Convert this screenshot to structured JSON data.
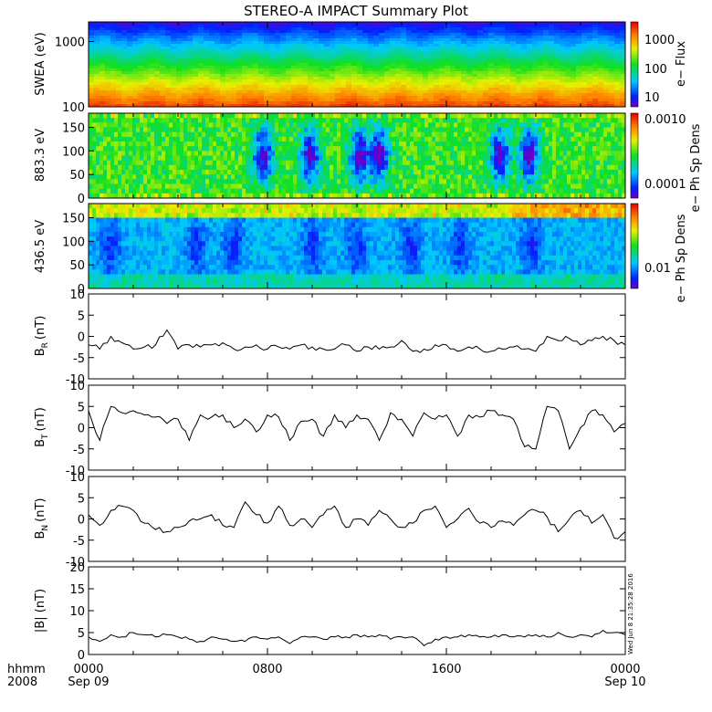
{
  "title": "STEREO-A IMPACT Summary Plot",
  "timestamp": "Wed Jun 8 21:35:28 2016",
  "time_axis": {
    "row1_label": "hhmm",
    "row2_label": "2008",
    "ticks": [
      {
        "top": "0000",
        "bottom": "Sep 09"
      },
      {
        "top": "0800",
        "bottom": ""
      },
      {
        "top": "1600",
        "bottom": ""
      },
      {
        "top": "0000",
        "bottom": "Sep 10"
      }
    ]
  },
  "colorbars": {
    "swea": {
      "title": "e− Flux",
      "ticks": [
        "1000",
        "100",
        "10"
      ]
    },
    "pad883": {
      "title": "e− Ph Sp Dens",
      "ticks": [
        "0.0010",
        "0.0001"
      ]
    },
    "pad436": {
      "title": "e− Ph Sp Dens",
      "ticks": [
        "0.01"
      ]
    }
  },
  "chart_data": [
    {
      "type": "heatmap",
      "name": "swea",
      "ylabel": "SWEA (eV)",
      "y_scale": "log",
      "ylim": [
        100,
        2000
      ],
      "y_ticks": [
        "1000",
        "100"
      ],
      "x_hours": [
        0,
        24
      ],
      "color_scale": "log",
      "color_range": [
        10,
        3000
      ],
      "description_levels": {
        "100": 1000,
        "200": 300,
        "400": 100,
        "1000": 30,
        "2000": 10
      }
    },
    {
      "type": "heatmap",
      "name": "pad883",
      "ylabel": "883.3 eV",
      "ylim": [
        0,
        180
      ],
      "y_ticks": [
        "150",
        "100",
        "50",
        "0"
      ],
      "x_hours": [
        0,
        24
      ],
      "color_scale": "log",
      "color_range": [
        5e-05,
        0.0012
      ],
      "depletions_hours": [
        7.8,
        9.9,
        12.1,
        13.0,
        18.4,
        19.7
      ]
    },
    {
      "type": "heatmap",
      "name": "pad436",
      "ylabel": "436.5 eV",
      "ylim": [
        0,
        180
      ],
      "y_ticks": [
        "150",
        "100",
        "50",
        "0"
      ],
      "x_hours": [
        0,
        24
      ],
      "color_scale": "log",
      "color_range": [
        0.002,
        0.06
      ],
      "depletions_hours": [
        1.0,
        4.8,
        6.5,
        10.0,
        12.0,
        14.4,
        16.6,
        19.8
      ]
    },
    {
      "type": "line",
      "name": "BR",
      "ylabel": "B",
      "ylabel_sub": "R",
      "ylabel_unit": "(nT)",
      "ylim": [
        -10,
        10
      ],
      "y_ticks": [
        "10",
        "5",
        "0",
        "-5",
        "-10"
      ],
      "x_hours": [
        0,
        0.5,
        1,
        1.5,
        2,
        2.5,
        3,
        3.5,
        4,
        4.5,
        5,
        5.5,
        6,
        6.5,
        7,
        7.5,
        8,
        8.5,
        9,
        9.5,
        10,
        10.5,
        11,
        11.5,
        12,
        12.5,
        13,
        13.5,
        14,
        14.5,
        15,
        15.5,
        16,
        16.5,
        17,
        17.5,
        18,
        18.5,
        19,
        19.5,
        20,
        20.5,
        21,
        21.5,
        22,
        22.5,
        23,
        23.5,
        24
      ],
      "y": [
        -2,
        -3,
        0,
        -1.5,
        -3,
        -2.5,
        -2,
        1.5,
        -3,
        -2,
        -2.5,
        -2,
        -1.5,
        -3,
        -2.5,
        -2,
        -3,
        -2.5,
        -3,
        -2,
        -2.5,
        -3,
        -3,
        -2,
        -3.5,
        -2.5,
        -3,
        -2.5,
        -1,
        -3.5,
        -3,
        -2,
        -2,
        -3.5,
        -2.5,
        -3,
        -3.5,
        -3,
        -2.5,
        -3,
        -3.5,
        0,
        -1,
        -0.5,
        -2,
        -1,
        0,
        -1,
        -2
      ]
    },
    {
      "type": "line",
      "name": "BT",
      "ylabel": "B",
      "ylabel_sub": "T",
      "ylabel_unit": "(nT)",
      "ylim": [
        -10,
        10
      ],
      "y_ticks": [
        "10",
        "5",
        "0",
        "-5",
        "-10"
      ],
      "x_hours": [
        0,
        0.5,
        1,
        1.5,
        2,
        2.5,
        3,
        3.5,
        4,
        4.5,
        5,
        5.5,
        6,
        6.5,
        7,
        7.5,
        8,
        8.5,
        9,
        9.5,
        10,
        10.5,
        11,
        11.5,
        12,
        12.5,
        13,
        13.5,
        14,
        14.5,
        15,
        15.5,
        16,
        16.5,
        17,
        17.5,
        18,
        18.5,
        19,
        19.5,
        20,
        20.5,
        21,
        21.5,
        22,
        22.5,
        23,
        23.5,
        24
      ],
      "y": [
        4,
        -3,
        5,
        3.5,
        4,
        3,
        2.5,
        1,
        2,
        -3,
        3,
        2.5,
        3,
        0,
        2,
        -1,
        3,
        2.5,
        -3,
        1.5,
        2,
        -2,
        3,
        0,
        3,
        2,
        -3,
        3.5,
        2,
        -2,
        3.5,
        2,
        3,
        -2,
        3,
        2.5,
        4,
        3,
        2,
        -4.5,
        -5,
        5,
        4,
        -5,
        0,
        4,
        3,
        -1,
        1
      ]
    },
    {
      "type": "line",
      "name": "BN",
      "ylabel": "B",
      "ylabel_sub": "N",
      "ylabel_unit": "(nT)",
      "ylim": [
        -10,
        10
      ],
      "y_ticks": [
        "10",
        "5",
        "0",
        "-5",
        "-10"
      ],
      "x_hours": [
        0,
        0.5,
        1,
        1.5,
        2,
        2.5,
        3,
        3.5,
        4,
        4.5,
        5,
        5.5,
        6,
        6.5,
        7,
        7.5,
        8,
        8.5,
        9,
        9.5,
        10,
        10.5,
        11,
        11.5,
        12,
        12.5,
        13,
        13.5,
        14,
        14.5,
        15,
        15.5,
        16,
        16.5,
        17,
        17.5,
        18,
        18.5,
        19,
        19.5,
        20,
        20.5,
        21,
        21.5,
        22,
        22.5,
        23,
        23.5,
        24
      ],
      "y": [
        1,
        -1.5,
        2,
        3,
        2,
        -1,
        -2.5,
        -3,
        -2,
        -0.5,
        0,
        1,
        -1.5,
        -2,
        4,
        1,
        -1,
        3,
        -1.5,
        0,
        -2,
        1,
        3,
        -2,
        0,
        -1.5,
        2,
        0,
        -2,
        -1,
        2,
        3,
        -2,
        0,
        2.5,
        -1,
        -2,
        -0.5,
        -1.5,
        1,
        2,
        0.5,
        -3,
        0,
        2,
        -1,
        1,
        -4.5,
        -3
      ]
    },
    {
      "type": "line",
      "name": "Bmag",
      "ylabel": "|B| (nT)",
      "ylim": [
        0,
        20
      ],
      "y_ticks": [
        "20",
        "15",
        "10",
        "5",
        "0"
      ],
      "x_hours": [
        0,
        0.5,
        1,
        1.5,
        2,
        2.5,
        3,
        3.5,
        4,
        4.5,
        5,
        5.5,
        6,
        6.5,
        7,
        7.5,
        8,
        8.5,
        9,
        9.5,
        10,
        10.5,
        11,
        11.5,
        12,
        12.5,
        13,
        13.5,
        14,
        14.5,
        15,
        15.5,
        16,
        16.5,
        17,
        17.5,
        18,
        18.5,
        19,
        19.5,
        20,
        20.5,
        21,
        21.5,
        22,
        22.5,
        23,
        23.5,
        24
      ],
      "y": [
        4,
        3,
        4.5,
        4,
        5,
        4.5,
        4,
        4.5,
        4,
        3.5,
        3,
        4,
        3.5,
        3,
        3,
        4,
        3.5,
        4,
        2.5,
        4,
        4,
        3.5,
        4,
        4,
        4.5,
        4,
        4.5,
        3.5,
        4,
        4,
        2,
        3.5,
        4,
        4,
        4.5,
        4,
        4,
        4.5,
        4,
        4,
        4.5,
        4,
        5,
        4,
        4.5,
        4,
        5.5,
        5,
        4.5
      ]
    }
  ]
}
